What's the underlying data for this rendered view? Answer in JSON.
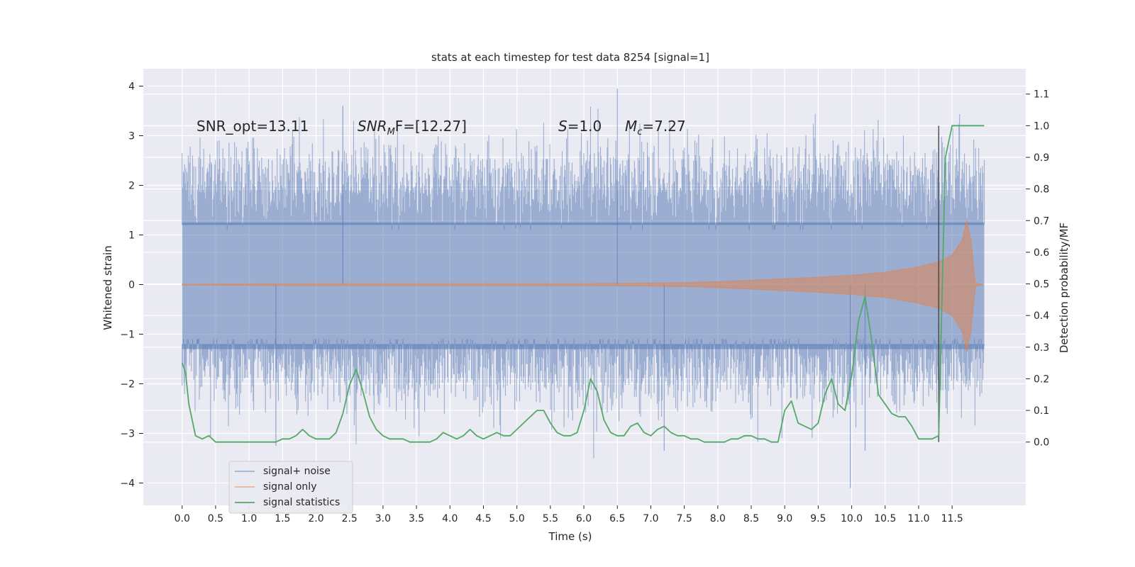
{
  "chart_data": {
    "type": "line",
    "title": "stats at each timestep for test data 8254 [signal=1]",
    "xlabel": "Time (s)",
    "ylabel": "Whitened strain",
    "ylabel_right": "Detection probability/MF",
    "xlim": [
      -0.58,
      12.6
    ],
    "ylim": [
      -4.45,
      4.35
    ],
    "ylim_right": [
      -0.2,
      1.18
    ],
    "x_ticks": [
      "0.0",
      "0.5",
      "1.0",
      "1.5",
      "2.0",
      "2.5",
      "3.0",
      "3.5",
      "4.0",
      "4.5",
      "5.0",
      "5.5",
      "6.0",
      "6.5",
      "7.0",
      "7.5",
      "8.0",
      "8.5",
      "9.0",
      "9.5",
      "10.0",
      "10.5",
      "11.0",
      "11.5"
    ],
    "y_ticks": [
      "4",
      "3",
      "2",
      "1",
      "0",
      "−1",
      "−2",
      "−3",
      "−4"
    ],
    "y_ticks_right": [
      "1.1",
      "1.0",
      "0.9",
      "0.8",
      "0.7",
      "0.6",
      "0.5",
      "0.4",
      "0.3",
      "0.2",
      "0.1",
      "0.0"
    ],
    "grid": true,
    "legend_location": "lower-left",
    "annotations": {
      "snr_opt": "SNR_opt=13.11",
      "snr_mf_name": "SNR",
      "snr_mf_sub": "M",
      "snr_mf_rest": "F=[12.27]",
      "s_name": "S",
      "s_rest": "=1.0",
      "mc_name": "M",
      "mc_sub": "c",
      "mc_rest": "=7.27"
    },
    "vline_x": 11.3,
    "series": [
      {
        "name": "signal+ noise",
        "color": "#4c72b0",
        "kind": "noise-band",
        "x_range": [
          0.0,
          11.98
        ],
        "typical_range": [
          -1.7,
          2.1
        ],
        "extreme_range": [
          -4.1,
          3.95
        ]
      },
      {
        "name": "signal only",
        "color": "#dd8452",
        "kind": "chirp-envelope",
        "x": [
          0.0,
          2.0,
          4.0,
          6.0,
          7.0,
          7.5,
          8.0,
          8.5,
          9.0,
          9.5,
          10.0,
          10.5,
          11.0,
          11.3,
          11.5,
          11.65,
          11.72,
          11.78,
          11.85,
          11.98
        ],
        "amplitude": [
          0.01,
          0.02,
          0.02,
          0.02,
          0.03,
          0.04,
          0.06,
          0.09,
          0.12,
          0.15,
          0.19,
          0.25,
          0.36,
          0.46,
          0.6,
          0.9,
          1.3,
          0.9,
          0.03,
          0.0
        ]
      },
      {
        "name": "signal statistics",
        "color": "#55a868",
        "kind": "line-right-axis",
        "x": [
          0.0,
          0.05,
          0.1,
          0.2,
          0.3,
          0.4,
          0.5,
          0.6,
          0.7,
          0.8,
          0.9,
          1.0,
          1.1,
          1.2,
          1.3,
          1.4,
          1.5,
          1.6,
          1.7,
          1.8,
          1.9,
          2.0,
          2.1,
          2.2,
          2.3,
          2.4,
          2.5,
          2.6,
          2.7,
          2.8,
          2.9,
          3.0,
          3.1,
          3.2,
          3.3,
          3.4,
          3.5,
          3.6,
          3.7,
          3.8,
          3.9,
          4.0,
          4.1,
          4.2,
          4.3,
          4.4,
          4.5,
          4.6,
          4.7,
          4.8,
          4.9,
          5.0,
          5.1,
          5.2,
          5.3,
          5.4,
          5.5,
          5.6,
          5.7,
          5.8,
          5.9,
          6.0,
          6.1,
          6.2,
          6.3,
          6.4,
          6.5,
          6.6,
          6.7,
          6.8,
          6.9,
          7.0,
          7.1,
          7.2,
          7.3,
          7.4,
          7.5,
          7.6,
          7.7,
          7.8,
          7.9,
          8.0,
          8.1,
          8.2,
          8.3,
          8.4,
          8.5,
          8.6,
          8.7,
          8.8,
          8.9,
          9.0,
          9.1,
          9.2,
          9.3,
          9.4,
          9.5,
          9.6,
          9.7,
          9.8,
          9.9,
          10.0,
          10.1,
          10.2,
          10.3,
          10.4,
          10.5,
          10.6,
          10.7,
          10.8,
          10.9,
          11.0,
          11.1,
          11.2,
          11.3,
          11.4,
          11.5,
          11.6,
          11.7,
          11.8,
          11.9,
          11.98
        ],
        "y": [
          0.25,
          0.22,
          0.12,
          0.02,
          0.01,
          0.02,
          0.0,
          0.0,
          0.0,
          0.0,
          0.0,
          0.0,
          0.0,
          0.0,
          0.0,
          0.0,
          0.01,
          0.01,
          0.02,
          0.04,
          0.02,
          0.01,
          0.01,
          0.01,
          0.03,
          0.09,
          0.18,
          0.23,
          0.16,
          0.08,
          0.04,
          0.02,
          0.01,
          0.01,
          0.01,
          0.0,
          0.0,
          0.0,
          0.0,
          0.01,
          0.03,
          0.02,
          0.01,
          0.02,
          0.04,
          0.02,
          0.01,
          0.02,
          0.03,
          0.02,
          0.02,
          0.04,
          0.06,
          0.08,
          0.1,
          0.1,
          0.06,
          0.03,
          0.02,
          0.02,
          0.03,
          0.1,
          0.2,
          0.16,
          0.07,
          0.03,
          0.02,
          0.02,
          0.05,
          0.06,
          0.03,
          0.02,
          0.04,
          0.05,
          0.03,
          0.02,
          0.02,
          0.01,
          0.01,
          0.0,
          0.0,
          0.0,
          0.0,
          0.01,
          0.01,
          0.02,
          0.02,
          0.01,
          0.01,
          0.0,
          0.0,
          0.1,
          0.13,
          0.06,
          0.05,
          0.04,
          0.06,
          0.15,
          0.2,
          0.12,
          0.1,
          0.21,
          0.38,
          0.46,
          0.32,
          0.15,
          0.12,
          0.09,
          0.08,
          0.08,
          0.05,
          0.01,
          0.01,
          0.01,
          0.02,
          0.9,
          1.0,
          1.0,
          1.0,
          1.0,
          1.0,
          1.0
        ]
      }
    ]
  }
}
